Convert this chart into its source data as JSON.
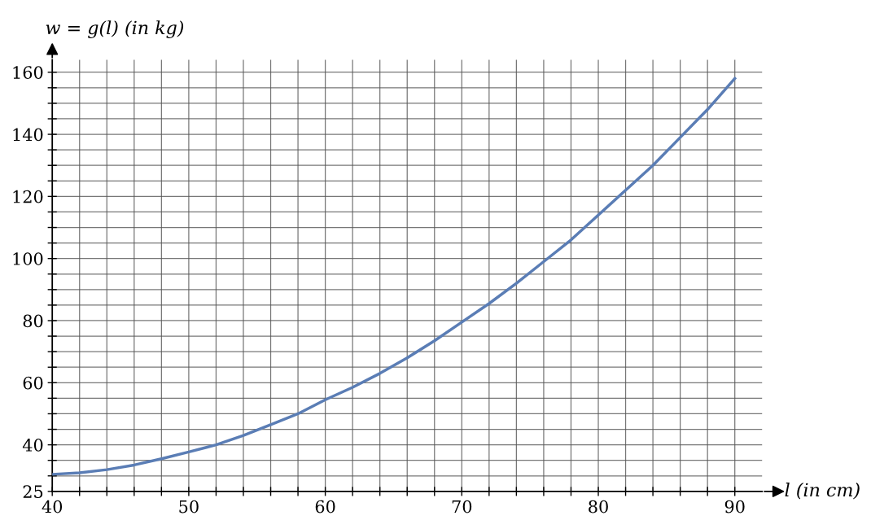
{
  "chart_data": {
    "type": "line",
    "xlabel": "l (in cm)",
    "ylabel": "w = g(l) (in kg)",
    "x": [
      40,
      42,
      44,
      46,
      48,
      50,
      52,
      54,
      56,
      58,
      60,
      62,
      64,
      66,
      68,
      70,
      72,
      74,
      76,
      78,
      80,
      82,
      84,
      86,
      88,
      90
    ],
    "series": [
      {
        "color": "#5a7db5",
        "values": [
          30.5,
          31,
          32,
          33.5,
          35.5,
          37.7,
          40,
          43,
          46.5,
          50,
          54.5,
          58.5,
          63,
          68,
          73.5,
          79.5,
          85.5,
          92,
          99,
          106,
          114,
          122,
          130,
          139,
          148,
          158
        ]
      }
    ],
    "xlim": [
      40,
      92
    ],
    "ylim": [
      25,
      164
    ],
    "xticks": [
      40,
      {
        "value": 42,
        "label": null
      },
      {
        "value": 44,
        "label": null
      },
      {
        "value": 46,
        "label": null
      },
      {
        "value": 48,
        "label": null
      },
      50,
      {
        "value": 52,
        "label": null
      },
      {
        "value": 54,
        "label": null
      },
      {
        "value": 56,
        "label": null
      },
      {
        "value": 58,
        "label": null
      },
      60,
      {
        "value": 62,
        "label": null
      },
      {
        "value": 64,
        "label": null
      },
      {
        "value": 66,
        "label": null
      },
      {
        "value": 68,
        "label": null
      },
      70,
      {
        "value": 72,
        "label": null
      },
      {
        "value": 74,
        "label": null
      },
      {
        "value": 76,
        "label": null
      },
      {
        "value": 78,
        "label": null
      },
      80,
      {
        "value": 82,
        "label": null
      },
      {
        "value": 84,
        "label": null
      },
      {
        "value": 86,
        "label": null
      },
      {
        "value": 88,
        "label": null
      },
      90
    ],
    "yticks": [
      25,
      {
        "value": 30,
        "label": null
      },
      {
        "value": 35,
        "label": null
      },
      40,
      {
        "value": 45,
        "label": null
      },
      {
        "value": 50,
        "label": null
      },
      {
        "value": 55,
        "label": null
      },
      60,
      {
        "value": 65,
        "label": null
      },
      {
        "value": 70,
        "label": null
      },
      {
        "value": 75,
        "label": null
      },
      80,
      {
        "value": 85,
        "label": null
      },
      {
        "value": 90,
        "label": null
      },
      {
        "value": 95,
        "label": null
      },
      100,
      {
        "value": 105,
        "label": null
      },
      {
        "value": 110,
        "label": null
      },
      {
        "value": 115,
        "label": null
      },
      120,
      {
        "value": 125,
        "label": null
      },
      {
        "value": 130,
        "label": null
      },
      {
        "value": 135,
        "label": null
      },
      140,
      {
        "value": 145,
        "label": null
      },
      {
        "value": 150,
        "label": null
      },
      {
        "value": 155,
        "label": null
      },
      160
    ],
    "grid": true,
    "marker": "none",
    "line_style": "solid"
  }
}
